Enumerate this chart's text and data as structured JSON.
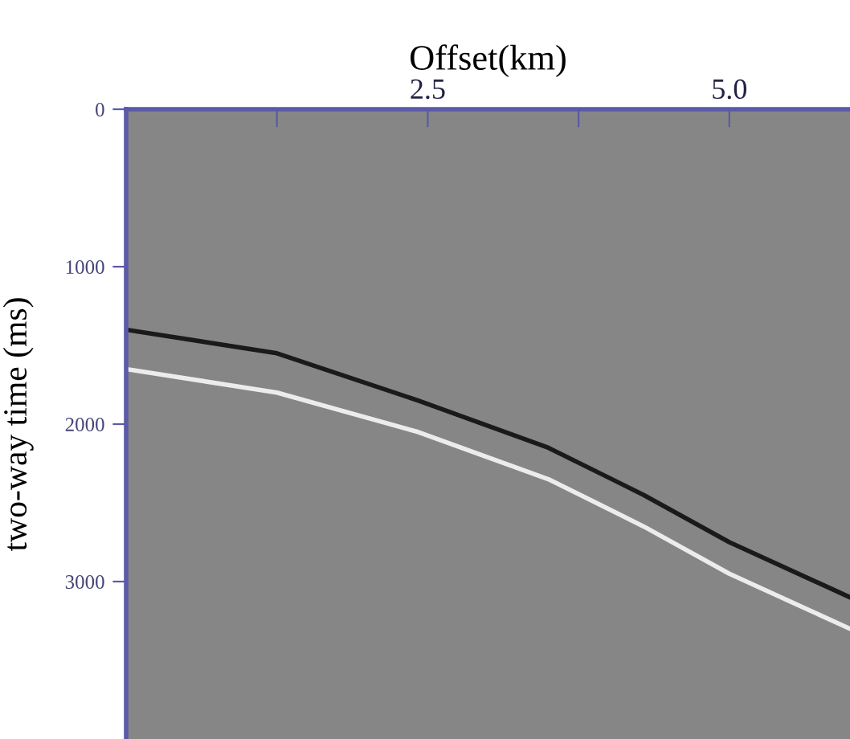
{
  "chart_data": {
    "type": "line",
    "xlabel": "Offset(km)",
    "ylabel": "two-way time (ms)",
    "x": [
      0,
      1.25,
      2.42,
      3.5,
      4.29,
      5.0,
      6.0
    ],
    "series": [
      {
        "color": "#1a1a1a",
        "values": [
          1400,
          1550,
          1850,
          2150,
          2450,
          2750,
          3100
        ]
      },
      {
        "color": "#ececec",
        "values": [
          1650,
          1800,
          2050,
          2350,
          2650,
          2950,
          3300
        ]
      }
    ],
    "xlim": [
      0,
      6
    ],
    "ylim": [
      4000,
      0
    ],
    "xticks": [
      {
        "value": 1.25,
        "label": null
      },
      2.5,
      {
        "value": 3.75,
        "label": null
      },
      {
        "value": 5,
        "label": "5.0"
      }
    ],
    "yticks": [
      0,
      1000,
      2000,
      3000
    ]
  }
}
